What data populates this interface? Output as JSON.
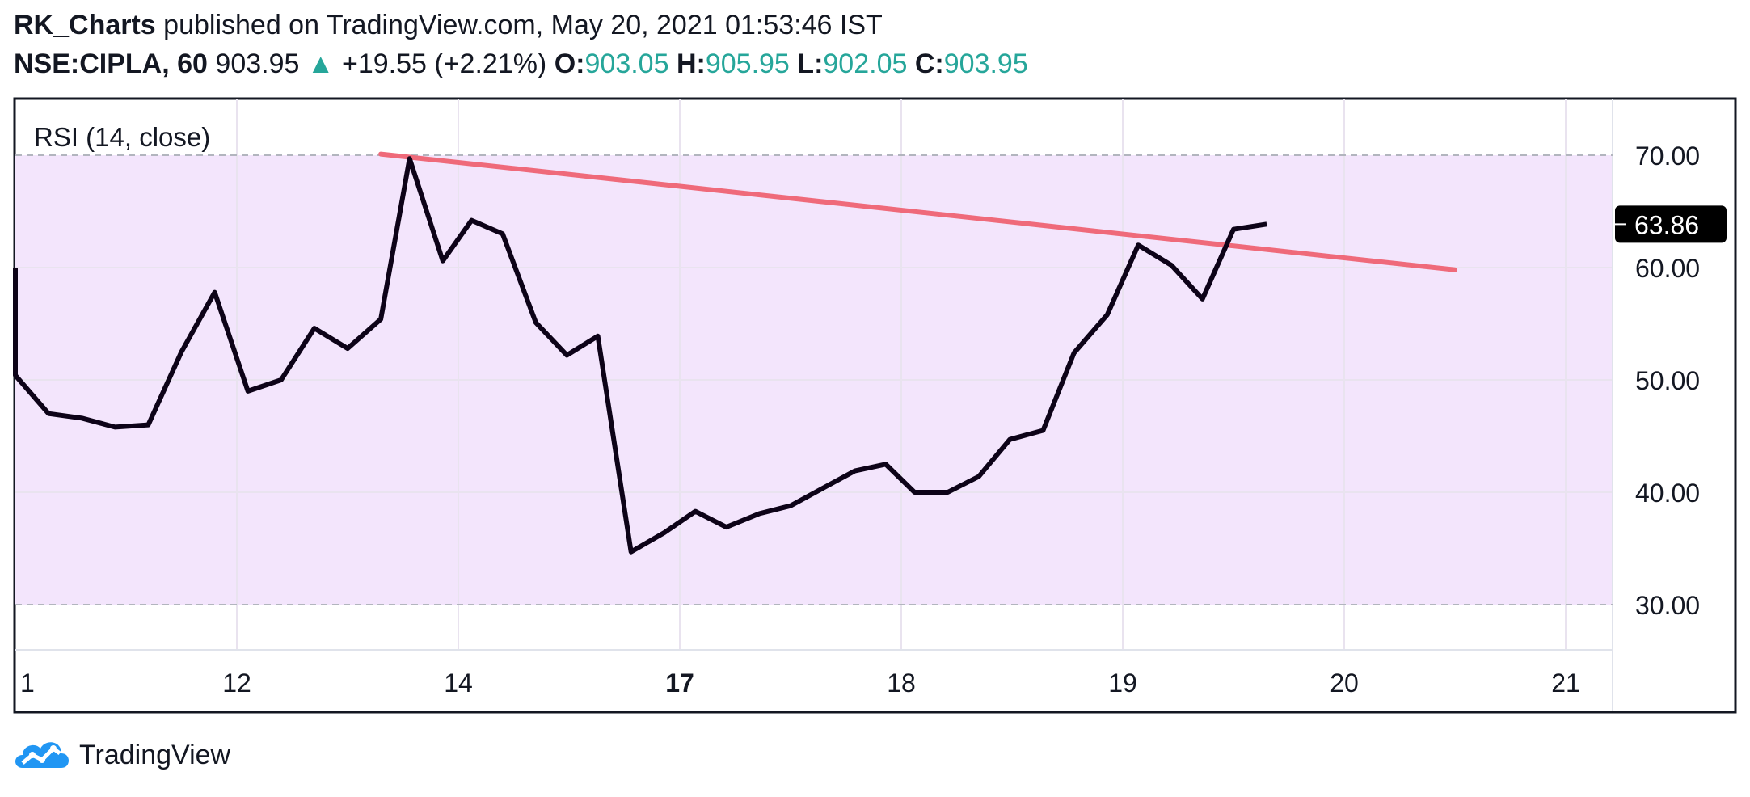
{
  "header": {
    "author": "RK_Charts",
    "published_text": "published on TradingView.com, May 20, 2021 01:53:46 IST",
    "symbol": "NSE:CIPLA, 60",
    "price": "903.95",
    "change": "+19.55 (+2.21%)",
    "o_label": "O:",
    "o_value": "903.05",
    "h_label": "H:",
    "h_value": "905.95",
    "l_label": "L:",
    "l_value": "902.05",
    "c_label": "C:",
    "c_value": "903.95"
  },
  "footer": {
    "brand": "TradingView"
  },
  "colors": {
    "rsi_line": "#0d0318",
    "trendline": "#ef6a7a",
    "band_fill": "#f3e5fc",
    "positive": "#26a69a",
    "last_value_bg": "#000000"
  },
  "chart_data": {
    "type": "line",
    "indicator_label": "RSI (14, close)",
    "ylim": [
      25,
      75
    ],
    "y_ticks": [
      30,
      40,
      50,
      60,
      70
    ],
    "y_tick_labels": [
      "30.00",
      "40.00",
      "50.00",
      "60.00",
      "70.00"
    ],
    "bands": {
      "upper": 70,
      "lower": 30
    },
    "x_tick_labels": [
      "1",
      "12",
      "14",
      "17",
      "18",
      "19",
      "20",
      "21"
    ],
    "x_tick_bold": [
      false,
      false,
      false,
      true,
      false,
      false,
      false,
      false
    ],
    "x_tick_positions": [
      -0.3,
      1,
      2,
      3,
      4,
      5,
      6,
      7
    ],
    "last_value": 63.86,
    "last_value_label": "63.86",
    "series": [
      {
        "values": [
          [
            -0.3,
            60.0
          ],
          [
            -0.15,
            52.3
          ],
          [
            0.0,
            50.4
          ],
          [
            0.15,
            47.0
          ],
          [
            0.3,
            46.6
          ],
          [
            0.45,
            45.8
          ],
          [
            0.6,
            46.0
          ],
          [
            0.75,
            52.5
          ],
          [
            0.9,
            57.8
          ],
          [
            1.05,
            49.0
          ],
          [
            1.2,
            50.0
          ],
          [
            1.35,
            54.6
          ],
          [
            1.5,
            52.8
          ],
          [
            1.65,
            55.4
          ],
          [
            1.78,
            69.7
          ],
          [
            1.93,
            60.6
          ],
          [
            2.06,
            64.2
          ],
          [
            2.2,
            63.0
          ],
          [
            2.35,
            55.1
          ],
          [
            2.49,
            52.2
          ],
          [
            2.63,
            53.9
          ],
          [
            2.78,
            34.7
          ],
          [
            2.93,
            36.4
          ],
          [
            3.07,
            38.3
          ],
          [
            3.21,
            36.9
          ],
          [
            3.36,
            38.1
          ],
          [
            3.5,
            38.8
          ],
          [
            3.65,
            40.4
          ],
          [
            3.79,
            41.9
          ],
          [
            3.93,
            42.5
          ],
          [
            4.06,
            40.0
          ],
          [
            4.21,
            40.0
          ],
          [
            4.35,
            41.4
          ],
          [
            4.49,
            44.7
          ],
          [
            4.64,
            45.5
          ],
          [
            4.78,
            52.4
          ],
          [
            4.93,
            55.8
          ],
          [
            5.07,
            62.0
          ],
          [
            5.22,
            60.2
          ],
          [
            5.36,
            57.2
          ],
          [
            5.5,
            63.4
          ],
          [
            5.65,
            63.86
          ]
        ]
      }
    ],
    "trendline": {
      "points": [
        [
          1.65,
          70.1
        ],
        [
          6.5,
          59.8
        ]
      ]
    }
  }
}
